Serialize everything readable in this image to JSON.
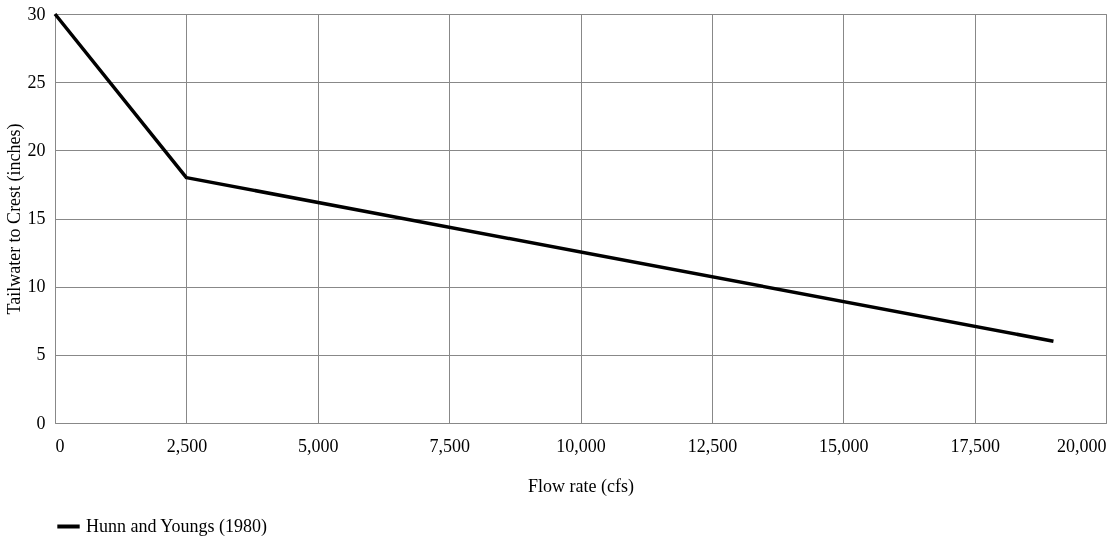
{
  "chart_data": {
    "type": "line",
    "xlabel": "Flow rate (cfs)",
    "ylabel": "Tailwater to Crest (inches)",
    "x": [
      0,
      2500,
      19000
    ],
    "series": [
      {
        "name": "Hunn and Youngs (1980)",
        "color": "#000000",
        "values": [
          30,
          18,
          6
        ]
      }
    ],
    "xlim": [
      0,
      20000
    ],
    "xticks": [
      {
        "value": 0,
        "label": "0"
      },
      {
        "value": 2500,
        "label": "2,500"
      },
      {
        "value": 5000,
        "label": "5,000"
      },
      {
        "value": 7500,
        "label": "7,500"
      },
      {
        "value": 10000,
        "label": "10,000"
      },
      {
        "value": 12500,
        "label": "12,500"
      },
      {
        "value": 15000,
        "label": "15,000"
      },
      {
        "value": 17500,
        "label": "17,500"
      },
      {
        "value": 20000,
        "label": "20,000"
      }
    ],
    "ylim": [
      0,
      30
    ],
    "yticks": [
      0,
      5,
      10,
      15,
      20,
      25,
      30
    ],
    "grid": true,
    "legend": "bottom",
    "marker": "none",
    "line_style": "solid"
  }
}
